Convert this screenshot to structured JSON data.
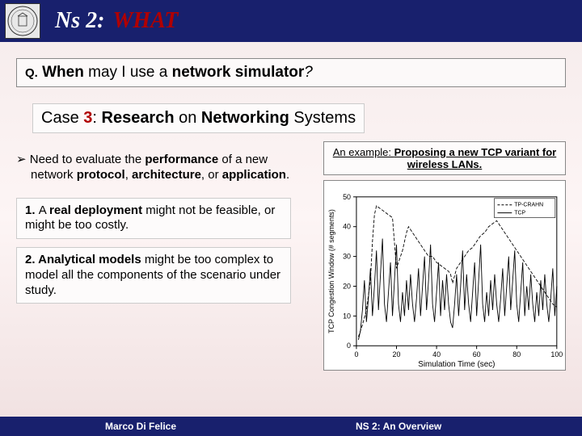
{
  "header": {
    "title_a": "Ns 2:",
    "title_b": "WHAT"
  },
  "question": {
    "q": "Q.",
    "t1": "When",
    "t2": " may I use a ",
    "t3": "network simulator",
    "t4": "?"
  },
  "case": {
    "t1": "Case ",
    "t2": "3",
    "t3": ": ",
    "t4": "Research",
    "t5": " on ",
    "t6": "Networking",
    "t7": " Systems"
  },
  "bullet": {
    "t1": "Need to evaluate the ",
    "t2": "performance",
    "t3": " of a new network ",
    "t4": "protocol",
    "t5": ", ",
    "t6": "architecture",
    "t7": ", or ",
    "t8": "application",
    "t9": "."
  },
  "box1": {
    "n": "1. ",
    "t1": "A ",
    "t2": "real deployment",
    "t3": " might not be feasible, or might be too costly."
  },
  "box2": {
    "n": "2. ",
    "t1": "Analytical models",
    "t2": " might be too complex to model all the components of the scenario under study."
  },
  "figure": {
    "caption": {
      "t1": "An example: ",
      "t2": "Proposing a new TCP variant for wireless LANs."
    },
    "legend": [
      "TP-CRAHN",
      "TCP"
    ],
    "xlabel": "Simulation Time (sec)",
    "ylabel": "TCP Congestion Window (# segments)",
    "xlim": [
      0,
      100
    ],
    "xticks": [
      0,
      20,
      40,
      60,
      80,
      100
    ],
    "ylim": [
      0,
      50
    ],
    "yticks": [
      0,
      10,
      20,
      30,
      40,
      50
    ],
    "colors": {
      "series_a": "#000000",
      "series_b": "#000000",
      "axis": "#000000",
      "grid": "#cccccc",
      "bg": "#ffffff"
    },
    "line_style": {
      "a": "dashed",
      "b": "solid"
    },
    "series_a": [
      [
        1,
        3
      ],
      [
        3,
        7
      ],
      [
        5,
        12
      ],
      [
        7,
        22
      ],
      [
        8,
        35
      ],
      [
        9,
        44
      ],
      [
        10,
        47
      ],
      [
        12,
        46
      ],
      [
        14,
        45
      ],
      [
        16,
        44
      ],
      [
        18,
        43
      ],
      [
        20,
        26
      ],
      [
        21,
        28
      ],
      [
        22,
        30
      ],
      [
        23,
        32
      ],
      [
        24,
        35
      ],
      [
        25,
        38
      ],
      [
        26,
        40
      ],
      [
        28,
        38
      ],
      [
        30,
        36
      ],
      [
        32,
        34
      ],
      [
        34,
        32
      ],
      [
        36,
        30
      ],
      [
        38,
        30
      ],
      [
        40,
        28
      ],
      [
        42,
        27
      ],
      [
        44,
        26
      ],
      [
        46,
        25
      ],
      [
        47,
        24
      ],
      [
        48,
        21
      ],
      [
        50,
        26
      ],
      [
        52,
        28
      ],
      [
        54,
        30
      ],
      [
        56,
        32
      ],
      [
        58,
        33
      ],
      [
        60,
        35
      ],
      [
        62,
        37
      ],
      [
        64,
        38
      ],
      [
        66,
        40
      ],
      [
        68,
        41
      ],
      [
        70,
        42
      ],
      [
        72,
        40
      ],
      [
        74,
        38
      ],
      [
        76,
        36
      ],
      [
        78,
        34
      ],
      [
        80,
        32
      ],
      [
        82,
        30
      ],
      [
        84,
        28
      ],
      [
        86,
        26
      ],
      [
        88,
        24
      ],
      [
        90,
        22
      ],
      [
        92,
        20
      ],
      [
        94,
        18
      ],
      [
        96,
        16
      ],
      [
        98,
        14
      ],
      [
        100,
        13
      ]
    ],
    "series_b": [
      [
        1,
        2
      ],
      [
        2,
        5
      ],
      [
        3,
        12
      ],
      [
        4,
        22
      ],
      [
        5,
        8
      ],
      [
        6,
        16
      ],
      [
        7,
        26
      ],
      [
        8,
        10
      ],
      [
        9,
        20
      ],
      [
        10,
        32
      ],
      [
        11,
        12
      ],
      [
        12,
        24
      ],
      [
        13,
        36
      ],
      [
        14,
        14
      ],
      [
        15,
        8
      ],
      [
        16,
        18
      ],
      [
        17,
        28
      ],
      [
        18,
        10
      ],
      [
        19,
        22
      ],
      [
        20,
        34
      ],
      [
        21,
        14
      ],
      [
        22,
        8
      ],
      [
        23,
        18
      ],
      [
        24,
        10
      ],
      [
        25,
        22
      ],
      [
        26,
        12
      ],
      [
        27,
        24
      ],
      [
        28,
        14
      ],
      [
        29,
        8
      ],
      [
        30,
        16
      ],
      [
        31,
        26
      ],
      [
        32,
        10
      ],
      [
        33,
        20
      ],
      [
        34,
        30
      ],
      [
        35,
        12
      ],
      [
        36,
        22
      ],
      [
        37,
        34
      ],
      [
        38,
        14
      ],
      [
        39,
        8
      ],
      [
        40,
        18
      ],
      [
        41,
        28
      ],
      [
        42,
        10
      ],
      [
        43,
        22
      ],
      [
        44,
        12
      ],
      [
        45,
        24
      ],
      [
        46,
        14
      ],
      [
        47,
        8
      ],
      [
        48,
        6
      ],
      [
        49,
        14
      ],
      [
        50,
        24
      ],
      [
        51,
        10
      ],
      [
        52,
        20
      ],
      [
        53,
        32
      ],
      [
        54,
        12
      ],
      [
        55,
        24
      ],
      [
        56,
        14
      ],
      [
        57,
        8
      ],
      [
        58,
        18
      ],
      [
        59,
        28
      ],
      [
        60,
        10
      ],
      [
        61,
        22
      ],
      [
        62,
        34
      ],
      [
        63,
        14
      ],
      [
        64,
        8
      ],
      [
        65,
        18
      ],
      [
        66,
        10
      ],
      [
        67,
        22
      ],
      [
        68,
        12
      ],
      [
        69,
        24
      ],
      [
        70,
        14
      ],
      [
        71,
        8
      ],
      [
        72,
        16
      ],
      [
        73,
        26
      ],
      [
        74,
        10
      ],
      [
        75,
        20
      ],
      [
        76,
        30
      ],
      [
        77,
        12
      ],
      [
        78,
        22
      ],
      [
        79,
        32
      ],
      [
        80,
        14
      ],
      [
        81,
        8
      ],
      [
        82,
        18
      ],
      [
        83,
        28
      ],
      [
        84,
        10
      ],
      [
        85,
        20
      ],
      [
        86,
        12
      ],
      [
        87,
        24
      ],
      [
        88,
        14
      ],
      [
        89,
        8
      ],
      [
        90,
        18
      ],
      [
        91,
        10
      ],
      [
        92,
        22
      ],
      [
        93,
        12
      ],
      [
        94,
        24
      ],
      [
        95,
        14
      ],
      [
        96,
        8
      ],
      [
        97,
        16
      ],
      [
        98,
        26
      ],
      [
        99,
        10
      ],
      [
        100,
        20
      ]
    ]
  },
  "footer": {
    "left": "Marco Di Felice",
    "right": "NS 2: An Overview"
  }
}
